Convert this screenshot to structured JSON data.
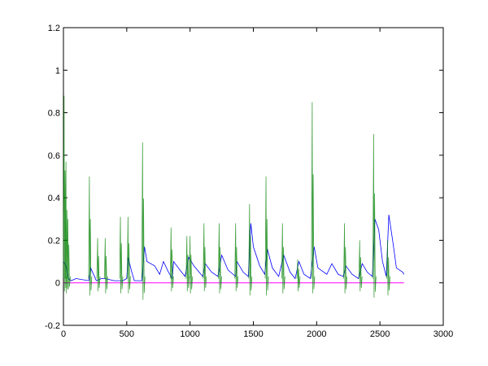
{
  "chart_data": {
    "type": "line",
    "title": "",
    "xlabel": "",
    "ylabel": "",
    "xlim": [
      0,
      3000
    ],
    "ylim": [
      -0.2,
      1.2
    ],
    "x_ticks": [
      "0",
      "500",
      "1000",
      "1500",
      "2000",
      "2500",
      "3000"
    ],
    "y_ticks": [
      "-0.2",
      "0",
      "0.2",
      "0.4",
      "0.6",
      "0.8",
      "1",
      "1.2"
    ],
    "grid": false,
    "colors": {
      "blue": "#0000ff",
      "green": "#008000",
      "magenta": "#ff00ff"
    },
    "series": [
      {
        "color": "#0000ff",
        "points": [
          [
            0,
            0.1
          ],
          [
            20,
            0.08
          ],
          [
            40,
            0.02
          ],
          [
            60,
            0.01
          ],
          [
            100,
            0.02
          ],
          [
            200,
            0.01
          ],
          [
            215,
            0.07
          ],
          [
            260,
            0.01
          ],
          [
            300,
            0.02
          ],
          [
            330,
            0.02
          ],
          [
            400,
            0.01
          ],
          [
            470,
            0.01
          ],
          [
            500,
            0.02
          ],
          [
            510,
            0.12
          ],
          [
            540,
            0.05
          ],
          [
            560,
            0.01
          ],
          [
            620,
            0.01
          ],
          [
            640,
            0.17
          ],
          [
            660,
            0.1
          ],
          [
            720,
            0.08
          ],
          [
            760,
            0.04
          ],
          [
            790,
            0.1
          ],
          [
            830,
            0.05
          ],
          [
            860,
            0.02
          ],
          [
            870,
            0.1
          ],
          [
            920,
            0.06
          ],
          [
            960,
            0.03
          ],
          [
            990,
            0.12
          ],
          [
            1030,
            0.08
          ],
          [
            1100,
            0.03
          ],
          [
            1120,
            0.09
          ],
          [
            1170,
            0.05
          ],
          [
            1220,
            0.03
          ],
          [
            1250,
            0.13
          ],
          [
            1300,
            0.06
          ],
          [
            1360,
            0.03
          ],
          [
            1370,
            0.1
          ],
          [
            1420,
            0.05
          ],
          [
            1460,
            0.03
          ],
          [
            1480,
            0.28
          ],
          [
            1500,
            0.17
          ],
          [
            1550,
            0.08
          ],
          [
            1590,
            0.04
          ],
          [
            1610,
            0.16
          ],
          [
            1650,
            0.07
          ],
          [
            1700,
            0.03
          ],
          [
            1740,
            0.13
          ],
          [
            1790,
            0.05
          ],
          [
            1830,
            0.02
          ],
          [
            1860,
            0.1
          ],
          [
            1900,
            0.04
          ],
          [
            1950,
            0.02
          ],
          [
            1980,
            0.17
          ],
          [
            2010,
            0.07
          ],
          [
            2080,
            0.04
          ],
          [
            2120,
            0.09
          ],
          [
            2170,
            0.04
          ],
          [
            2210,
            0.03
          ],
          [
            2230,
            0.08
          ],
          [
            2280,
            0.04
          ],
          [
            2330,
            0.02
          ],
          [
            2360,
            0.09
          ],
          [
            2400,
            0.05
          ],
          [
            2440,
            0.03
          ],
          [
            2460,
            0.3
          ],
          [
            2490,
            0.25
          ],
          [
            2520,
            0.1
          ],
          [
            2550,
            0.03
          ],
          [
            2570,
            0.32
          ],
          [
            2600,
            0.2
          ],
          [
            2630,
            0.07
          ],
          [
            2680,
            0.05
          ],
          [
            2690,
            0.04
          ]
        ]
      },
      {
        "color": "#008000",
        "spikes": [
          [
            5,
            0.88,
            -0.04
          ],
          [
            20,
            0.57,
            -0.05
          ],
          [
            35,
            0.3,
            -0.03
          ],
          [
            205,
            0.5,
            -0.06
          ],
          [
            270,
            0.21,
            -0.04
          ],
          [
            330,
            0.21,
            -0.05
          ],
          [
            450,
            0.31,
            -0.05
          ],
          [
            510,
            0.31,
            -0.05
          ],
          [
            625,
            0.66,
            -0.08
          ],
          [
            850,
            0.26,
            -0.04
          ],
          [
            975,
            0.22,
            -0.04
          ],
          [
            1000,
            0.22,
            -0.05
          ],
          [
            1110,
            0.28,
            -0.04
          ],
          [
            1230,
            0.28,
            -0.05
          ],
          [
            1360,
            0.28,
            -0.04
          ],
          [
            1470,
            0.37,
            -0.06
          ],
          [
            1600,
            0.5,
            -0.06
          ],
          [
            1730,
            0.28,
            -0.05
          ],
          [
            1850,
            0.11,
            -0.04
          ],
          [
            1965,
            0.85,
            -0.05
          ],
          [
            2220,
            0.28,
            -0.05
          ],
          [
            2340,
            0.2,
            -0.04
          ],
          [
            2450,
            0.7,
            -0.07
          ],
          [
            2560,
            0.2,
            -0.06
          ]
        ]
      },
      {
        "color": "#ff00ff",
        "points": [
          [
            0,
            0
          ],
          [
            2690,
            0
          ]
        ]
      }
    ]
  }
}
